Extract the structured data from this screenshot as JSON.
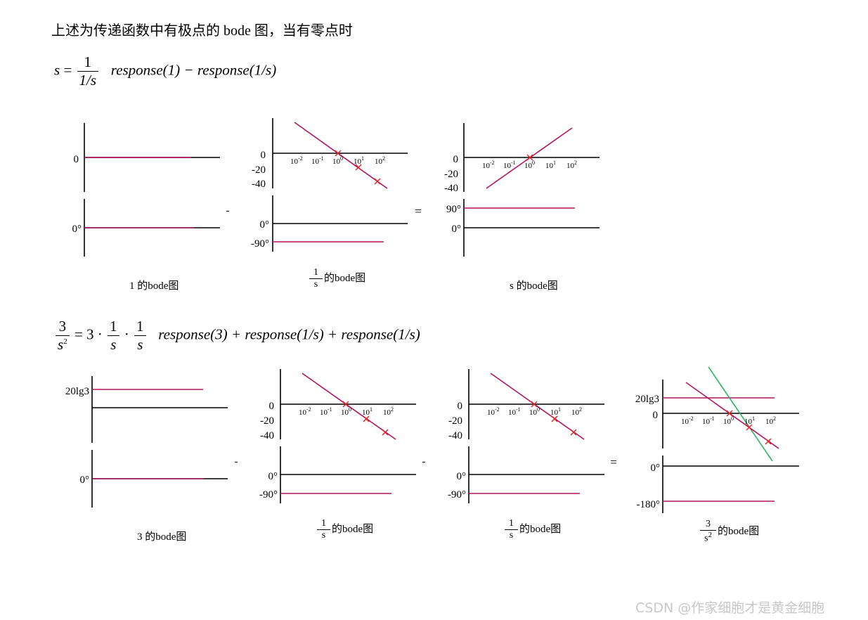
{
  "heading": "上述为传递函数中有极点的 bode 图，当有零点时",
  "formula1": {
    "lhs": "s",
    "eq": "=",
    "frac_num": "1",
    "frac_den": "1/s",
    "rhs": "response(1) − response(1/s)"
  },
  "formula2": {
    "frac_num": "3",
    "frac_den": "s",
    "frac_den_sup": "2",
    "eq": "= 3 ·",
    "f1_num": "1",
    "f1_den": "s",
    "dot": "·",
    "f2_num": "1",
    "f2_den": "s",
    "rhs": "response(3) + response(1/s) + response(1/s)"
  },
  "operators": {
    "minus": "-",
    "equals": "="
  },
  "mag_ticks": {
    "zero": "0",
    "m20": "-20",
    "m40": "-40",
    "g20lg3": "20lg3"
  },
  "phase_ticks": {
    "p0": "0°",
    "p90": "90°",
    "m90": "-90°",
    "m180": "-180°"
  },
  "freq_labels": [
    {
      "base": "10",
      "exp": "-2"
    },
    {
      "base": "10",
      "exp": "-1"
    },
    {
      "base": "10",
      "exp": "0"
    },
    {
      "base": "10",
      "exp": "1"
    },
    {
      "base": "10",
      "exp": "2"
    }
  ],
  "captions": {
    "c1": "1   的bode图",
    "c2_num": "1",
    "c2_den": "s",
    "c2_text": "的bode图",
    "c3": "s   的bode图",
    "c4": "3   的bode图",
    "c5_num": "1",
    "c5_den": "s",
    "c5_text": "的bode图",
    "c6_num": "1",
    "c6_den": "s",
    "c6_text": "的bode图",
    "c7_num": "3",
    "c7_den": "s",
    "c7_den_sup": "2",
    "c7_text": "的bode图"
  },
  "colors": {
    "axis": "#000000",
    "response": "#b0145e",
    "pole_marker": "#e0242c",
    "total": "#2cb562"
  },
  "watermark": "CSDN @作家细胞才是黄金细胞"
}
